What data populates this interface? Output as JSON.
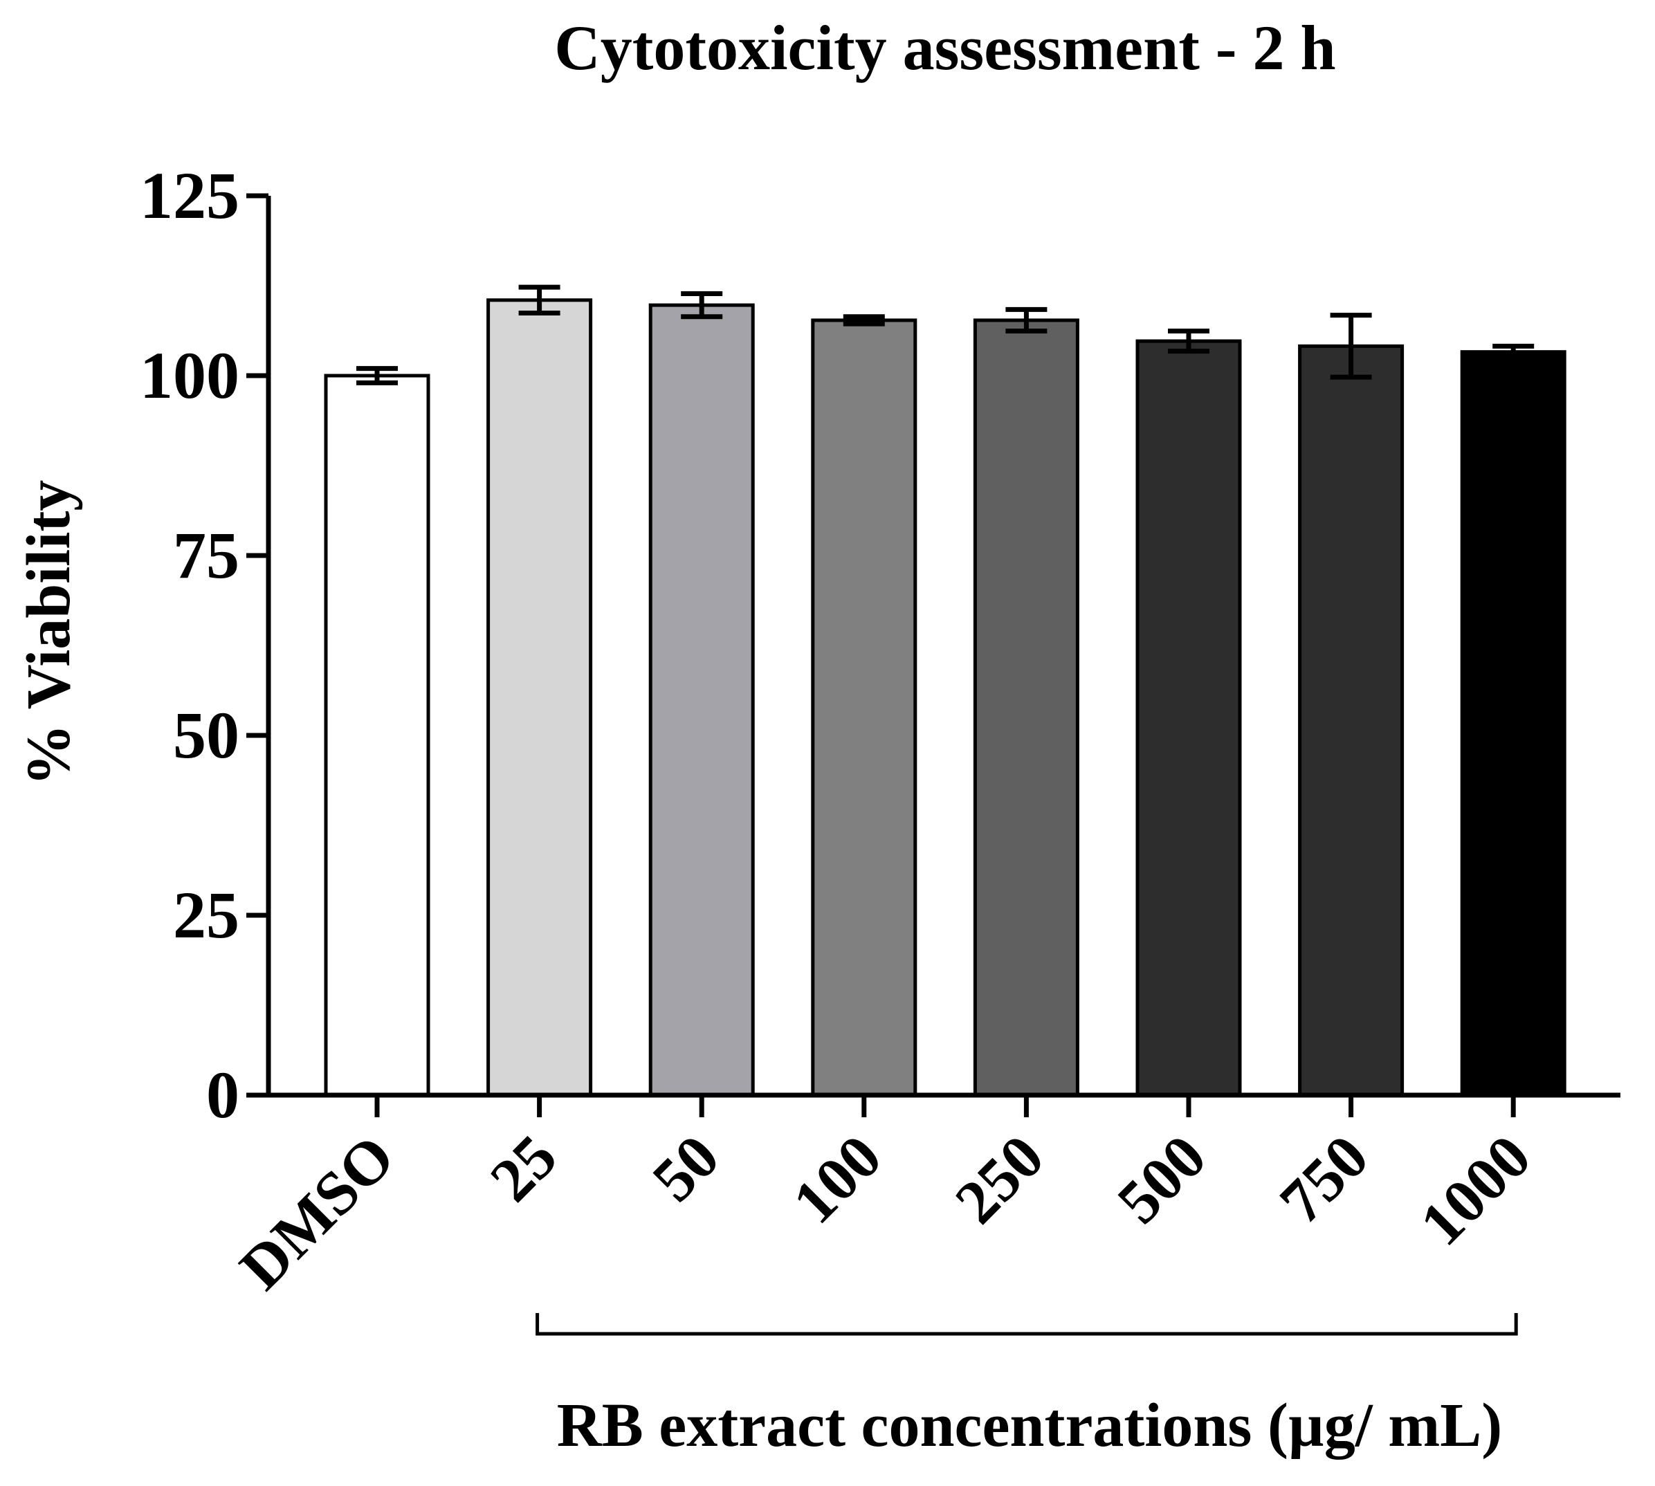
{
  "chart_data": {
    "type": "bar",
    "title": "Cytotoxicity assessment - 2 h",
    "ylabel": "% Viability",
    "xlabel": "RB extract concentrations (µg/ mL)",
    "ylim": [
      0,
      125
    ],
    "yticks": [
      0,
      25,
      50,
      75,
      100,
      125
    ],
    "ytick_labels": [
      "0",
      "25",
      "50",
      "75",
      "100",
      "125"
    ],
    "categories": [
      "DMSO",
      "25",
      "50",
      "100",
      "250",
      "500",
      "750",
      "1000"
    ],
    "values": [
      100,
      110.5,
      109.8,
      107.7,
      107.7,
      104.8,
      104.1,
      103.3
    ],
    "errors": [
      1.0,
      1.8,
      1.6,
      0.5,
      1.5,
      1.4,
      4.3,
      0.8
    ],
    "colors": [
      "#ffffff",
      "#d6d6d6",
      "#a4a3a9",
      "#808080",
      "#606060",
      "#2d2d2d",
      "#2d2d2d",
      "#000000"
    ],
    "bracket_from": "25",
    "bracket_to": "1000"
  }
}
